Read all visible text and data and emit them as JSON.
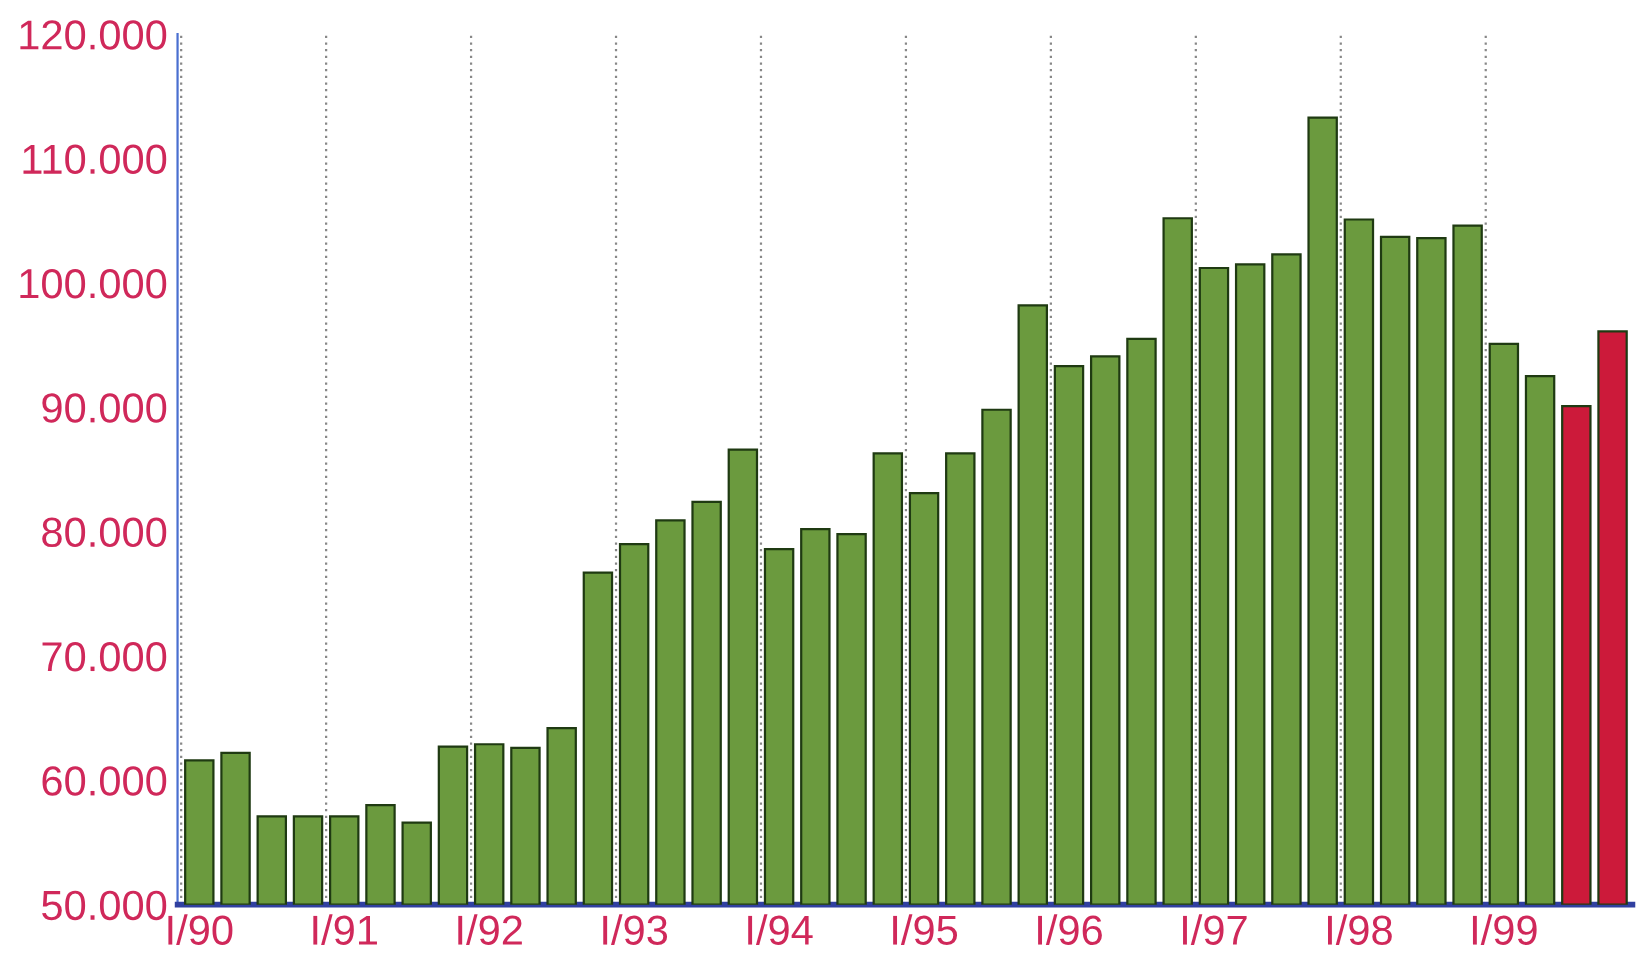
{
  "chart_data": {
    "type": "bar",
    "categories": [
      "I/90",
      null,
      null,
      null,
      "I/91",
      null,
      null,
      null,
      "I/92",
      null,
      null,
      null,
      "I/93",
      null,
      null,
      null,
      "I/94",
      null,
      null,
      null,
      "I/95",
      null,
      null,
      null,
      "I/96",
      null,
      null,
      null,
      "I/97",
      null,
      null,
      null,
      "I/98",
      null,
      null,
      null,
      "I/99",
      null,
      null,
      null
    ],
    "values": [
      61600,
      62200,
      57100,
      57100,
      57100,
      58000,
      56600,
      62700,
      62900,
      62600,
      64200,
      76700,
      79000,
      80900,
      82400,
      86600,
      78600,
      80200,
      79800,
      86300,
      83100,
      86300,
      89800,
      98200,
      93300,
      94100,
      95500,
      105200,
      101200,
      101500,
      102300,
      113300,
      105100,
      103700,
      103600,
      104600,
      95100,
      92500,
      90100,
      96100
    ],
    "colors": [
      "#6b9a3e",
      "#6b9a3e",
      "#6b9a3e",
      "#6b9a3e",
      "#6b9a3e",
      "#6b9a3e",
      "#6b9a3e",
      "#6b9a3e",
      "#6b9a3e",
      "#6b9a3e",
      "#6b9a3e",
      "#6b9a3e",
      "#6b9a3e",
      "#6b9a3e",
      "#6b9a3e",
      "#6b9a3e",
      "#6b9a3e",
      "#6b9a3e",
      "#6b9a3e",
      "#6b9a3e",
      "#6b9a3e",
      "#6b9a3e",
      "#6b9a3e",
      "#6b9a3e",
      "#6b9a3e",
      "#6b9a3e",
      "#6b9a3e",
      "#6b9a3e",
      "#6b9a3e",
      "#6b9a3e",
      "#6b9a3e",
      "#6b9a3e",
      "#6b9a3e",
      "#6b9a3e",
      "#6b9a3e",
      "#6b9a3e",
      "#6b9a3e",
      "#6b9a3e",
      "#cc1a3a",
      "#cc1a3a"
    ],
    "ylim": [
      50000,
      120000
    ],
    "yticks": [
      {
        "value": 50000,
        "label": "50.000"
      },
      {
        "value": 60000,
        "label": "60.000"
      },
      {
        "value": 70000,
        "label": "70.000"
      },
      {
        "value": 80000,
        "label": "80.000"
      },
      {
        "value": 90000,
        "label": "90.000"
      },
      {
        "value": 100000,
        "label": "100.000"
      },
      {
        "value": 110000,
        "label": "110.000"
      },
      {
        "value": 120000,
        "label": "120.000"
      }
    ],
    "grid": "x"
  }
}
